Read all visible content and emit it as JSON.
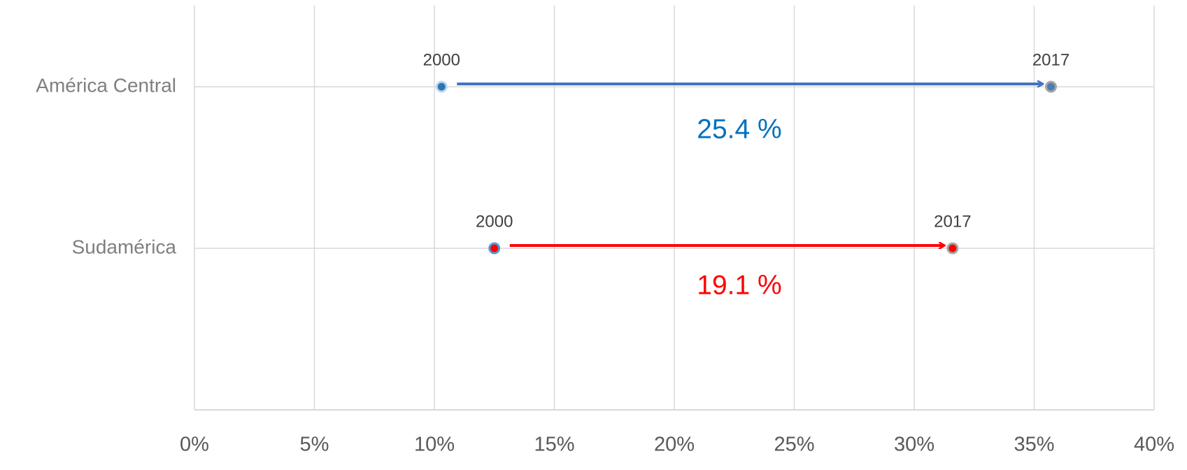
{
  "chart_data": {
    "type": "arrow-dumbbell",
    "categories": [
      "América Central",
      "Sudamérica"
    ],
    "series": [
      {
        "name": "2000",
        "values": [
          10.3,
          12.5
        ]
      },
      {
        "name": "2017",
        "values": [
          35.7,
          31.6
        ]
      }
    ],
    "change_values": [
      25.4,
      19.1
    ],
    "change_labels": [
      "25.4 %",
      "19.1 %"
    ],
    "arrow_colors": [
      "#4472c4",
      "#ff0000"
    ],
    "label_colors": [
      "#0070c0",
      "#ff0000"
    ],
    "xlim": [
      0,
      40
    ],
    "xticks": [
      {
        "value": 0,
        "label": "0%"
      },
      {
        "value": 5,
        "label": "5%"
      },
      {
        "value": 10,
        "label": "10%"
      },
      {
        "value": 15,
        "label": "15%"
      },
      {
        "value": 20,
        "label": "20%"
      },
      {
        "value": 25,
        "label": "25%"
      },
      {
        "value": 30,
        "label": "30%"
      },
      {
        "value": 35,
        "label": "35%"
      },
      {
        "value": 40,
        "label": "40%"
      }
    ],
    "grid": true
  }
}
